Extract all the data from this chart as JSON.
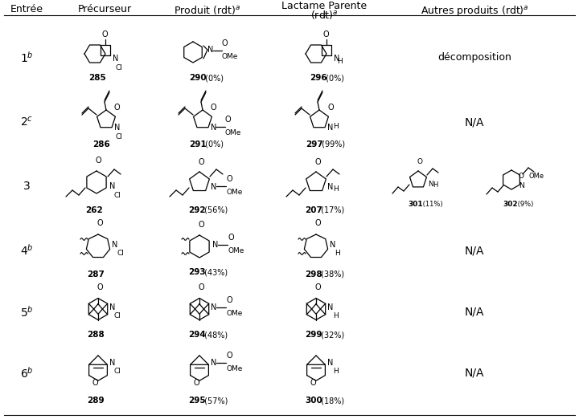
{
  "bg_color": "#ffffff",
  "text_color": "#000000",
  "header_fontsize": 9,
  "fontsize": 9,
  "rows": [
    {
      "entry": "1$^b$",
      "prec": "285",
      "prod": "290",
      "prod_rdt": "(0%)",
      "lact": "296",
      "lact_rdt": "(0%)",
      "autres": "décomposition"
    },
    {
      "entry": "2$^c$",
      "prec": "286",
      "prod": "291",
      "prod_rdt": "(0%)",
      "lact": "297",
      "lact_rdt": "(99%)",
      "autres": "N/A"
    },
    {
      "entry": "3",
      "prec": "262",
      "prod": "292",
      "prod_rdt": "(56%)",
      "lact": "207",
      "lact_rdt": "(17%)",
      "autres": "301_302"
    },
    {
      "entry": "4$^b$",
      "prec": "287",
      "prod": "293",
      "prod_rdt": "(43%)",
      "lact": "298",
      "lact_rdt": "(38%)",
      "autres": "N/A"
    },
    {
      "entry": "5$^b$",
      "prec": "288",
      "prod": "294",
      "prod_rdt": "(48%)",
      "lact": "299",
      "lact_rdt": "(32%)",
      "autres": "N/A"
    },
    {
      "entry": "6$^b$",
      "prec": "289",
      "prod": "295",
      "prod_rdt": "(57%)",
      "lact": "300",
      "lact_rdt": "(18%)",
      "autres": "N/A"
    }
  ]
}
